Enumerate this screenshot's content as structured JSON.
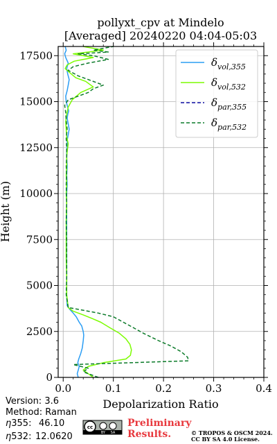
{
  "chart_data": {
    "type": "line",
    "title": [
      "pollyxt_cpv at Mindelo",
      "[Averaged] 20240220 04:04-05:03"
    ],
    "xlabel": "Depolarization Ratio",
    "ylabel": "Height (m)",
    "xlim": [
      -0.01,
      0.4
    ],
    "ylim": [
      0,
      18000
    ],
    "xticks": [
      "0.0",
      "0.1",
      "0.2",
      "0.3",
      "0.4"
    ],
    "xtick_values": [
      0,
      0.1,
      0.2,
      0.3,
      0.4
    ],
    "yticks": [
      "0",
      "2500",
      "5000",
      "7500",
      "10000",
      "12500",
      "15000",
      "17500"
    ],
    "ytick_values": [
      0,
      2500,
      5000,
      7500,
      10000,
      12500,
      15000,
      17500
    ],
    "grid": true,
    "legend_position": "top-right",
    "series": [
      {
        "name": "δvol,355",
        "label_base": "δ",
        "label_sub": "vol,355",
        "color": "#2a9df4",
        "dash": "solid",
        "x": [
          0.03,
          0.028,
          0.03,
          0.032,
          0.029,
          0.031,
          0.035,
          0.038,
          0.04,
          0.041,
          0.04,
          0.037,
          0.032,
          0.026,
          0.02,
          0.013,
          0.008,
          0.007,
          0.007,
          0.007,
          0.007,
          0.007,
          0.007,
          0.007,
          0.008,
          0.007,
          0.008,
          0.007,
          0.007,
          0.008,
          0.008,
          0.01,
          0.012,
          0.01,
          0.008,
          0.009,
          0.011,
          0.008,
          0.006,
          0.005,
          0.008,
          0.01,
          0.012,
          0.009,
          0.007,
          0.01,
          0.005,
          0.003,
          0.006,
          0.004
        ],
        "y": [
          0,
          200,
          400,
          600,
          800,
          1000,
          1300,
          1600,
          2000,
          2300,
          2500,
          2800,
          3000,
          3300,
          3500,
          3700,
          3900,
          4500,
          5500,
          6500,
          7500,
          8500,
          9500,
          10000,
          10500,
          11000,
          11500,
          12000,
          12300,
          12600,
          12900,
          13200,
          13500,
          13800,
          14100,
          14300,
          14500,
          14800,
          15000,
          15300,
          15600,
          15900,
          16200,
          16500,
          16800,
          17100,
          17400,
          17600,
          17800,
          18000
        ]
      },
      {
        "name": "δvol,532",
        "label_base": "δ",
        "label_sub": "vol,532",
        "color": "#7cfc00",
        "dash": "solid",
        "x": [
          0.06,
          0.05,
          0.04,
          0.05,
          0.08,
          0.125,
          0.134,
          0.136,
          0.133,
          0.125,
          0.112,
          0.093,
          0.075,
          0.058,
          0.04,
          0.02,
          0.01,
          0.007,
          0.007,
          0.006,
          0.006,
          0.006,
          0.007,
          0.006,
          0.007,
          0.006,
          0.007,
          0.007,
          0.008,
          0.01,
          0.007,
          0.006,
          0.005,
          0.007,
          0.01,
          0.018,
          0.035,
          0.06,
          0.045,
          0.025,
          0.012,
          0.004,
          0.008,
          0.022,
          0.06,
          0.04,
          0.02,
          0.05,
          0.08,
          0.04
        ],
        "y": [
          0,
          200,
          400,
          600,
          800,
          1000,
          1200,
          1500,
          1800,
          2100,
          2400,
          2700,
          3000,
          3200,
          3400,
          3600,
          3800,
          4500,
          5500,
          6500,
          7500,
          8500,
          9500,
          10000,
          10500,
          11000,
          11500,
          12000,
          12300,
          12700,
          13100,
          13500,
          13900,
          14300,
          14700,
          15100,
          15500,
          15800,
          16100,
          16300,
          16600,
          16800,
          17000,
          17200,
          17400,
          17500,
          17600,
          17700,
          17800,
          18000
        ]
      },
      {
        "name": "δpar,355",
        "label_base": "δ",
        "label_sub": "par,355",
        "color": "#0a0aa0",
        "dash": "dashed",
        "x": [],
        "y": []
      },
      {
        "name": "δpar,532",
        "label_base": "δ",
        "label_sub": "par,532",
        "color": "#0a7a28",
        "dash": "dashed",
        "x": [
          0.07,
          0.055,
          0.04,
          0.05,
          0.02,
          0.25,
          0.248,
          0.235,
          0.215,
          0.19,
          0.16,
          0.14,
          0.12,
          0.1,
          0.07,
          0.03,
          0.01,
          0.006,
          0.007,
          0.007,
          0.007,
          0.006,
          0.007,
          0.006,
          0.007,
          0.006,
          0.007,
          0.007,
          0.006,
          0.008,
          0.006,
          0.005,
          0.003,
          0.01,
          0.03,
          0.05,
          0.06,
          0.08,
          0.05,
          0.03,
          0.01,
          0.02,
          0.05,
          0.09,
          0.06,
          0.03,
          0.09,
          0.06,
          0.1
        ],
        "y": [
          0,
          150,
          300,
          500,
          700,
          900,
          1100,
          1400,
          1700,
          2000,
          2400,
          2700,
          3000,
          3300,
          3500,
          3700,
          3800,
          4500,
          5500,
          6500,
          7500,
          8500,
          9500,
          10500,
          11000,
          11500,
          12000,
          12500,
          13000,
          13500,
          14000,
          14400,
          14800,
          15100,
          15300,
          15500,
          15700,
          15900,
          16200,
          16400,
          16700,
          16900,
          17100,
          17300,
          17500,
          17600,
          17700,
          17800,
          18000
        ]
      }
    ]
  },
  "meta": {
    "version": "Version: 3.6",
    "method": "Method: Raman",
    "eta355_label": "355:",
    "eta355_value": "46.10",
    "eta532_label": "532:",
    "eta532_value": "12.0620",
    "eta_symbol": "η",
    "preliminary_line1": "Preliminary",
    "preliminary_line2": "Results.",
    "copyright_line1": "© TROPOS & OSCM 2024.",
    "copyright_line2": "CC BY SA 4.0 License.",
    "badge_left": "cc",
    "badge_by": "BY",
    "badge_sa": "SA"
  }
}
